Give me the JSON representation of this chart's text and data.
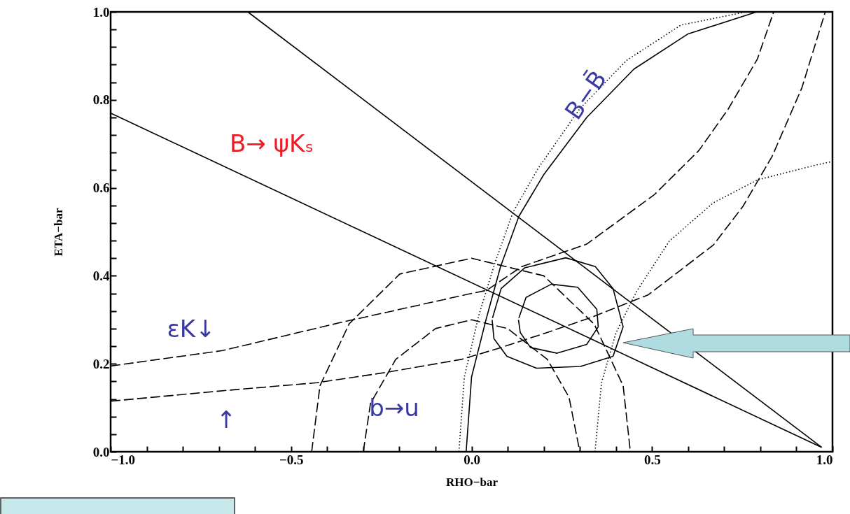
{
  "chart_data": {
    "type": "line",
    "xlabel": "RHO−bar",
    "ylabel": "ETA−bar",
    "xlim": [
      -1,
      1
    ],
    "ylim": [
      0,
      1
    ],
    "xticks": [
      {
        "value": -1,
        "label": "−1.0"
      },
      {
        "value": -0.9,
        "label": null
      },
      {
        "value": -0.8,
        "label": null
      },
      {
        "value": -0.7,
        "label": null
      },
      {
        "value": -0.6,
        "label": null
      },
      {
        "value": -0.5,
        "label": "−0.5"
      },
      {
        "value": -0.4,
        "label": null
      },
      {
        "value": -0.3,
        "label": null
      },
      {
        "value": -0.2,
        "label": null
      },
      {
        "value": -0.1,
        "label": null
      },
      {
        "value": 0,
        "label": "0.0"
      },
      {
        "value": 0.1,
        "label": null
      },
      {
        "value": 0.2,
        "label": null
      },
      {
        "value": 0.3,
        "label": null
      },
      {
        "value": 0.4,
        "label": null
      },
      {
        "value": 0.5,
        "label": "0.5"
      },
      {
        "value": 0.6,
        "label": null
      },
      {
        "value": 0.7,
        "label": null
      },
      {
        "value": 0.8,
        "label": null
      },
      {
        "value": 0.9,
        "label": null
      },
      {
        "value": 1,
        "label": "1.0"
      }
    ],
    "yticks": [
      {
        "value": 0,
        "label": "0.0"
      },
      {
        "value": 0.04,
        "label": null
      },
      {
        "value": 0.08,
        "label": null
      },
      {
        "value": 0.12,
        "label": null
      },
      {
        "value": 0.16,
        "label": null
      },
      {
        "value": 0.2,
        "label": "0.2"
      },
      {
        "value": 0.24,
        "label": null
      },
      {
        "value": 0.28,
        "label": null
      },
      {
        "value": 0.32,
        "label": null
      },
      {
        "value": 0.36,
        "label": null
      },
      {
        "value": 0.4,
        "label": "0.4"
      },
      {
        "value": 0.44,
        "label": null
      },
      {
        "value": 0.48,
        "label": null
      },
      {
        "value": 0.52,
        "label": null
      },
      {
        "value": 0.56,
        "label": null
      },
      {
        "value": 0.6,
        "label": "0.6"
      },
      {
        "value": 0.64,
        "label": null
      },
      {
        "value": 0.68,
        "label": null
      },
      {
        "value": 0.72,
        "label": null
      },
      {
        "value": 0.76,
        "label": null
      },
      {
        "value": 0.8,
        "label": "0.8"
      },
      {
        "value": 0.84,
        "label": null
      },
      {
        "value": 0.88,
        "label": null
      },
      {
        "value": 0.92,
        "label": null
      },
      {
        "value": 0.96,
        "label": null
      },
      {
        "value": 1,
        "label": "1.0"
      }
    ],
    "series": [
      {
        "type": "line",
        "line_style": "solid",
        "color": "#000000",
        "x": [
          -0.62,
          0.97
        ],
        "values": [
          1.0,
          0.01
        ]
      },
      {
        "type": "line",
        "line_style": "solid",
        "color": "#000000",
        "x": [
          -1.0,
          0.97
        ],
        "values": [
          0.77,
          0.01
        ]
      },
      {
        "type": "line",
        "line_style": "solid",
        "color": "#000000",
        "x": [
          -0.015,
          0.0,
          0.04,
          0.08,
          0.131,
          0.2,
          0.319,
          0.45,
          0.6,
          0.79
        ],
        "values": [
          0.0,
          0.17,
          0.3,
          0.42,
          0.535,
          0.63,
          0.76,
          0.87,
          0.95,
          1.0
        ]
      },
      {
        "type": "line",
        "line_style": "dotted",
        "color": "#000000",
        "x": [
          -0.035,
          -0.02,
          0.02,
          0.065,
          0.115,
          0.185,
          0.3,
          0.43,
          0.58,
          0.76
        ],
        "values": [
          0.0,
          0.17,
          0.31,
          0.43,
          0.545,
          0.645,
          0.78,
          0.89,
          0.97,
          1.0
        ]
      },
      {
        "line_style": "solid",
        "color": "#000000",
        "x": [
          0.058,
          0.082,
          0.147,
          0.261,
          0.343,
          0.392,
          0.42,
          0.392,
          0.302,
          0.18,
          0.098,
          0.062,
          0.057
        ],
        "values": [
          0.304,
          0.371,
          0.418,
          0.441,
          0.421,
          0.371,
          0.284,
          0.217,
          0.194,
          0.19,
          0.217,
          0.257,
          0.3
        ]
      },
      {
        "line_style": "solid",
        "color": "#000000",
        "x": [
          0.131,
          0.151,
          0.221,
          0.294,
          0.347,
          0.351,
          0.319,
          0.237,
          0.163,
          0.135,
          0.13
        ],
        "values": [
          0.304,
          0.351,
          0.381,
          0.374,
          0.324,
          0.284,
          0.244,
          0.224,
          0.237,
          0.271,
          0.3
        ]
      },
      {
        "type": "line",
        "line_style": "dashed",
        "color": "#000000",
        "x": [
          -1.0,
          -0.672,
          -0.428,
          -0.24,
          -0.028,
          0.082,
          0.205,
          0.327,
          0.49,
          0.67,
          0.752,
          0.833,
          0.915,
          0.98
        ],
        "values": [
          0.115,
          0.14,
          0.157,
          0.18,
          0.21,
          0.237,
          0.27,
          0.304,
          0.357,
          0.47,
          0.558,
          0.672,
          0.827,
          1.0
        ]
      },
      {
        "type": "line",
        "line_style": "dashed",
        "color": "#000000",
        "x": [
          -1.0,
          -0.69,
          -0.362,
          -0.011,
          0.042,
          0.139,
          0.319,
          0.507,
          0.63,
          0.711,
          0.792,
          0.837
        ],
        "values": [
          0.195,
          0.23,
          0.294,
          0.358,
          0.367,
          0.421,
          0.472,
          0.585,
          0.685,
          0.779,
          0.893,
          1.0
        ]
      },
      {
        "type": "line",
        "line_style": "dashed",
        "color": "#000000",
        "x": [
          -0.443,
          -0.42,
          -0.339,
          -0.199,
          0.0,
          0.2,
          0.34,
          0.42,
          0.44
        ],
        "values": [
          0.0,
          0.15,
          0.291,
          0.404,
          0.44,
          0.4,
          0.29,
          0.15,
          0.0
        ]
      },
      {
        "type": "line",
        "line_style": "dashed",
        "color": "#000000",
        "x": [
          -0.3,
          -0.28,
          -0.21,
          -0.1,
          0.0,
          0.1,
          0.21,
          0.27,
          0.3
        ],
        "values": [
          0.0,
          0.11,
          0.21,
          0.28,
          0.3,
          0.28,
          0.21,
          0.124,
          0.0
        ]
      },
      {
        "type": "line",
        "line_style": "dotted",
        "color": "#000000",
        "x": [
          0.342,
          0.36,
          0.4,
          0.457,
          0.548,
          0.67,
          0.792,
          0.955,
          1.0
        ],
        "values": [
          0.0,
          0.157,
          0.27,
          0.364,
          0.479,
          0.566,
          0.618,
          0.652,
          0.66
        ]
      }
    ],
    "annotations": [
      "B→ ψKₛ",
      "B−B̄",
      "εK↓",
      "↑",
      "b→u"
    ]
  }
}
